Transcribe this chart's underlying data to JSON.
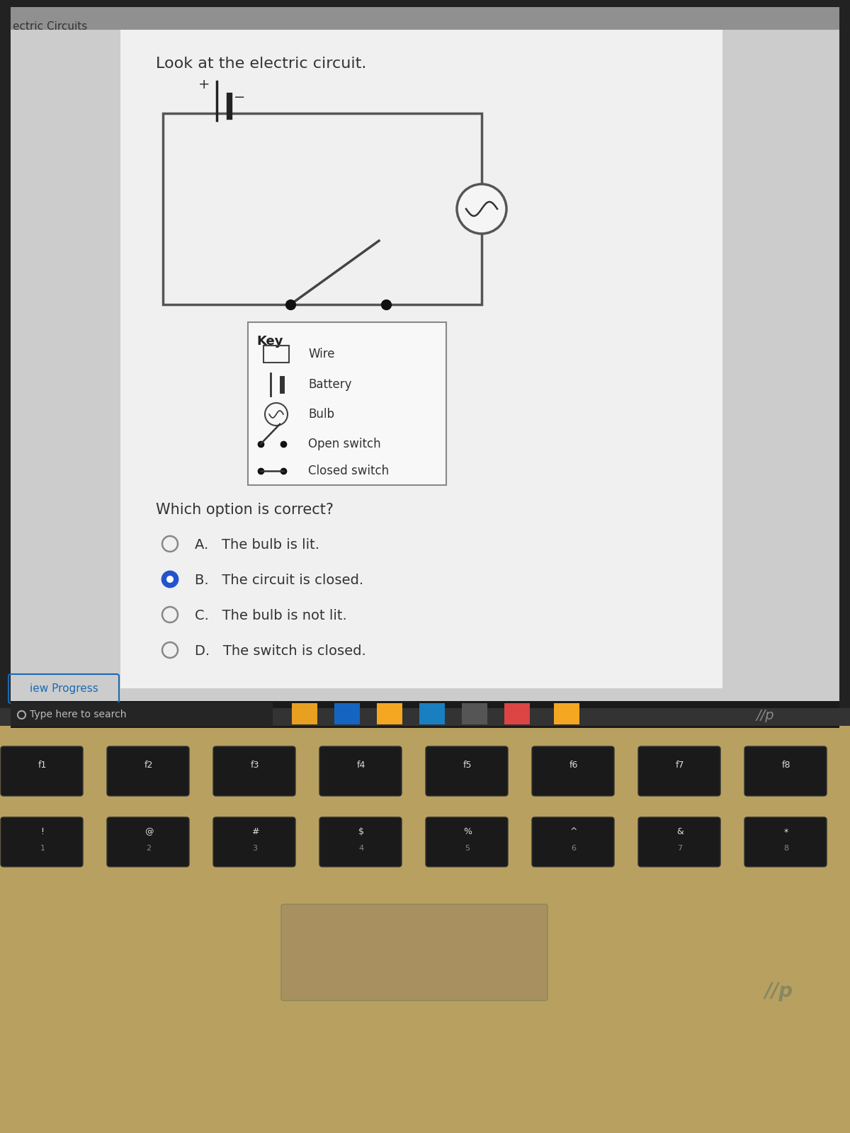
{
  "title": "Look at the electric circuit.",
  "question": "Which option is correct?",
  "options": [
    {
      "letter": "A",
      "text": "The bulb is lit.",
      "selected": false
    },
    {
      "letter": "B",
      "text": "The circuit is closed.",
      "selected": true
    },
    {
      "letter": "C",
      "text": "The bulb is not lit.",
      "selected": false
    },
    {
      "letter": "D",
      "text": "The switch is closed.",
      "selected": false
    }
  ],
  "key_items": [
    {
      "symbol": "wire",
      "label": "Wire"
    },
    {
      "symbol": "battery",
      "label": "Battery"
    },
    {
      "symbol": "bulb",
      "label": "Bulb"
    },
    {
      "symbol": "open_switch",
      "label": "Open switch"
    },
    {
      "symbol": "closed_switch",
      "label": "Closed switch"
    }
  ],
  "screen_bg": "#c8c8c8",
  "content_bg": "#e8e8e8",
  "white_panel_bg": "#f2f2f2",
  "taskbar_bg": "#1a1a1a",
  "keyboard_bg": "#b8a878",
  "key_color": "#1a1a1a",
  "bezel_color": "#111111",
  "header_gray": "#888888",
  "view_progress_color": "#1a6ab5",
  "selected_radio_color": "#2255cc"
}
